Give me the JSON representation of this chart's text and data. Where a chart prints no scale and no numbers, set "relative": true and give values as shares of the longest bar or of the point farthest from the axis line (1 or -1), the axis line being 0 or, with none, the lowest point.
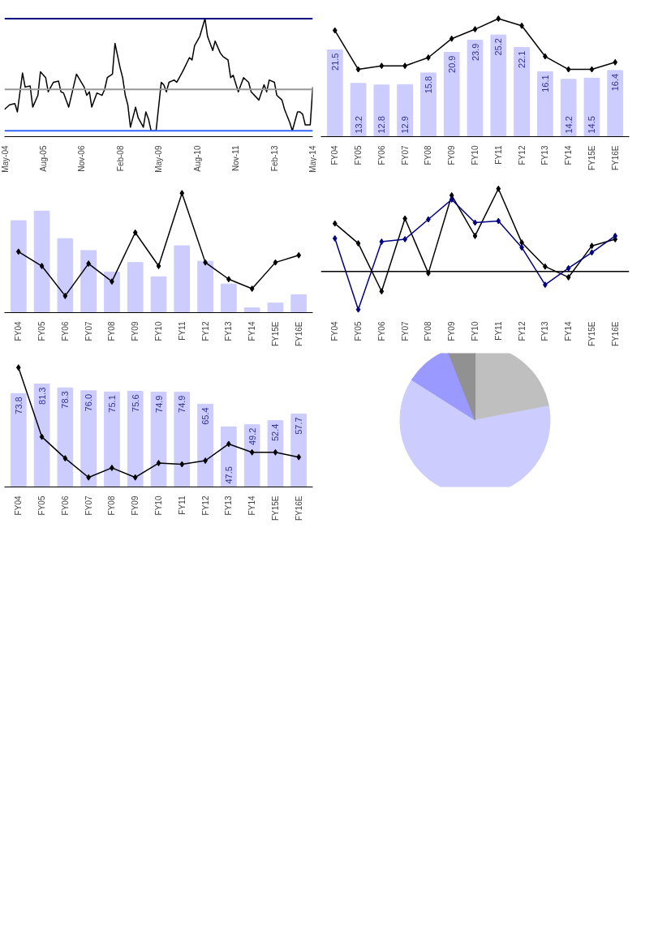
{
  "chart_data": [
    {
      "type": "line",
      "relative": true,
      "grid": false,
      "x": [
        "2004-05",
        "2004-07",
        "2004-09",
        "2004-10",
        "2004-12",
        "2005-01",
        "2005-03",
        "2005-04",
        "2005-06",
        "2005-07",
        "2005-09",
        "2005-10",
        "2005-12",
        "2006-02",
        "2006-03",
        "2006-04",
        "2006-06",
        "2006-09",
        "2006-12",
        "2007-01",
        "2007-02",
        "2007-03",
        "2007-05",
        "2007-07",
        "2007-08",
        "2007-09",
        "2007-11",
        "2007-12",
        "2008-02",
        "2008-03",
        "2008-04",
        "2008-05",
        "2008-06",
        "2008-08",
        "2008-09",
        "2008-11",
        "2008-12",
        "2009-01",
        "2009-02",
        "2009-04",
        "2009-06",
        "2009-07",
        "2009-08",
        "2009-09",
        "2009-11",
        "2009-12",
        "2010-02",
        "2010-03",
        "2010-05",
        "2010-06",
        "2010-07",
        "2010-09",
        "2010-11",
        "2010-12",
        "2011-02",
        "2011-03",
        "2011-05",
        "2011-06",
        "2011-08",
        "2011-09",
        "2011-10",
        "2011-12",
        "2012-02",
        "2012-04",
        "2012-05",
        "2012-08",
        "2012-10",
        "2012-11",
        "2012-12",
        "2013-02",
        "2013-03",
        "2013-05",
        "2013-06",
        "2013-08",
        "2013-09",
        "2013-11",
        "2013-12",
        "2014-01",
        "2014-02",
        "2014-04",
        "2014-05"
      ],
      "xlim": [
        "2004-05",
        "2014-05"
      ],
      "xticks": [
        {
          "value": "2004-05",
          "label": "May-04"
        },
        {
          "value": "2005-08",
          "label": "Aug-05"
        },
        {
          "value": "2006-11",
          "label": "Nov-06"
        },
        {
          "value": "2008-02",
          "label": "Feb-08"
        },
        {
          "value": "2009-05",
          "label": "May-09"
        },
        {
          "value": "2010-08",
          "label": "Aug-10"
        },
        {
          "value": "2011-11",
          "label": "Nov-11"
        },
        {
          "value": "2013-02",
          "label": "Feb-13"
        },
        {
          "value": "2014-05",
          "label": "May-14"
        }
      ],
      "series": [
        {
          "color": "#000000",
          "values": [
            0.23,
            0.27,
            0.28,
            0.21,
            0.54,
            0.42,
            0.43,
            0.25,
            0.35,
            0.55,
            0.5,
            0.38,
            0.46,
            0.47,
            0.38,
            0.37,
            0.25,
            0.53,
            0.42,
            0.35,
            0.38,
            0.25,
            0.37,
            0.35,
            0.4,
            0.5,
            0.53,
            0.79,
            0.58,
            0.5,
            0.35,
            0.27,
            0.08,
            0.25,
            0.16,
            0.08,
            0.21,
            0.15,
            0.05,
            0.05,
            0.46,
            0.44,
            0.38,
            0.46,
            0.48,
            0.46,
            0.54,
            0.58,
            0.67,
            0.65,
            0.77,
            0.85,
            1.0,
            0.85,
            0.73,
            0.81,
            0.71,
            0.68,
            0.65,
            0.5,
            0.52,
            0.38,
            0.5,
            0.46,
            0.38,
            0.31,
            0.44,
            0.38,
            0.48,
            0.46,
            0.35,
            0.31,
            0.23,
            0.12,
            0.05,
            0.21,
            0.21,
            0.19,
            0.1,
            0.1,
            0.42
          ]
        }
      ],
      "ref_lines": [
        {
          "axis": "y",
          "value": 1.0,
          "color": "#000080"
        },
        {
          "axis": "y",
          "value": 0.4,
          "color": "#999999"
        },
        {
          "axis": "y",
          "value": 0.05,
          "color": "#3366ff"
        }
      ]
    },
    {
      "type": "bar",
      "tick_labels": "x",
      "categories": [
        "FY04",
        "FY05",
        "FY06",
        "FY07",
        "FY08",
        "FY09",
        "FY10",
        "FY11",
        "FY12",
        "FY13",
        "FY14",
        "FY15E",
        "FY16E"
      ],
      "series": [
        {
          "color": "#ccccff",
          "values": [
            21.5,
            13.2,
            12.8,
            12.9,
            15.8,
            20.9,
            23.9,
            25.2,
            22.1,
            16.1,
            14.2,
            14.5,
            16.4
          ],
          "value_labels": [
            "21.5",
            "13.2",
            "12.8",
            "12.9",
            "15.8",
            "20.9",
            "23.9",
            "25.2",
            "22.1",
            "16.1",
            "14.2",
            "14.5",
            "16.4"
          ]
        }
      ]
    },
    {
      "type": "line",
      "relative": true,
      "marker": "diamond",
      "series": [
        {
          "color": "#000000",
          "values": [
            0.9,
            0.57,
            0.6,
            0.6,
            0.67,
            0.83,
            0.91,
            1.0,
            0.94,
            0.68,
            0.57,
            0.57,
            0.63
          ]
        }
      ]
    },
    {
      "type": "bar",
      "relative": true,
      "marker": "diamond",
      "categories": [
        "FY04",
        "FY05",
        "FY06",
        "FY07",
        "FY08",
        "FY09",
        "FY10",
        "FY11",
        "FY12",
        "FY13",
        "FY14",
        "FY15E",
        "FY16E"
      ],
      "series": [
        {
          "type": "bar",
          "color": "#ccccff",
          "values": [
            0.77,
            0.85,
            0.62,
            0.52,
            0.34,
            0.42,
            0.3,
            0.56,
            0.43,
            0.24,
            0.04,
            0.08,
            0.15
          ]
        },
        {
          "type": "line",
          "color": "#000000",
          "values": [
            0.51,
            0.39,
            0.14,
            0.41,
            0.26,
            0.67,
            0.39,
            1.0,
            0.42,
            0.28,
            0.2,
            0.42,
            0.48
          ]
        }
      ]
    },
    {
      "type": "line",
      "relative": true,
      "marker": "diamond",
      "categories": [
        "FY04",
        "FY05",
        "FY06",
        "FY07",
        "FY08",
        "FY09",
        "FY10",
        "FY11",
        "FY12",
        "FY13",
        "FY14",
        "FY15E",
        "FY16E"
      ],
      "series": [
        {
          "color": "#000000",
          "values": [
            0.58,
            0.34,
            -0.24,
            0.64,
            -0.02,
            0.92,
            0.43,
            1.0,
            0.35,
            0.06,
            -0.07,
            0.31,
            0.39
          ]
        },
        {
          "color": "#000080",
          "values": [
            0.4,
            -0.46,
            0.36,
            0.39,
            0.63,
            0.87,
            0.59,
            0.61,
            0.29,
            -0.16,
            0.04,
            0.23,
            0.43
          ]
        }
      ]
    },
    {
      "type": "bar",
      "tick_labels": "x",
      "categories": [
        "FY04",
        "FY05",
        "FY06",
        "FY07",
        "FY08",
        "FY09",
        "FY10",
        "FY11",
        "FY12",
        "FY13",
        "FY14",
        "FY15E",
        "FY16E"
      ],
      "series": [
        {
          "color": "#ccccff",
          "values": [
            73.8,
            81.3,
            78.3,
            76.0,
            75.1,
            75.6,
            74.9,
            74.9,
            65.4,
            47.5,
            49.2,
            52.4,
            57.7
          ],
          "value_labels": [
            "73.8",
            "81.3",
            "78.3",
            "76.0",
            "75.1",
            "75.6",
            "74.9",
            "74.9",
            "65.4",
            "47.5",
            "49.2",
            "52.4",
            "57.7"
          ]
        }
      ]
    },
    {
      "type": "line",
      "relative": true,
      "marker": "diamond",
      "series": [
        {
          "color": "#000000",
          "values": [
            1.0,
            0.42,
            0.24,
            0.08,
            0.16,
            0.08,
            0.2,
            0.19,
            0.22,
            0.36,
            0.29,
            0.29,
            0.25
          ]
        }
      ]
    },
    {
      "type": "pie",
      "categories": [
        null,
        null,
        null,
        null
      ],
      "values": [
        22,
        62,
        10,
        6
      ],
      "colors": [
        "#bfbfbf",
        "#ccccff",
        "#9999ff",
        "#919191"
      ]
    }
  ]
}
